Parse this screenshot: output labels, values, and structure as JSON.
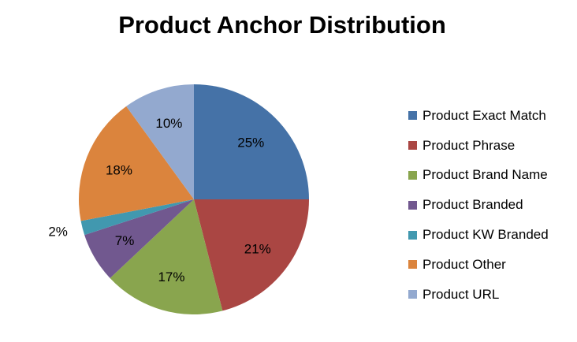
{
  "chart_data": {
    "type": "pie",
    "title": "Product Anchor Distribution",
    "categories": [
      "Product Exact Match",
      "Product Phrase",
      "Product Brand Name",
      "Product Branded",
      "Product KW Branded",
      "Product Other",
      "Product URL"
    ],
    "values": [
      25,
      21,
      17,
      7,
      2,
      18,
      10
    ],
    "labels": [
      "25%",
      "21%",
      "17%",
      "7%",
      "2%",
      "18%",
      "10%"
    ],
    "colors": [
      "#4572A7",
      "#AA4643",
      "#89A54E",
      "#71588F",
      "#4198AF",
      "#DB843D",
      "#93A9CF"
    ],
    "legend": "right",
    "start": "top",
    "direction": "clockwise"
  }
}
